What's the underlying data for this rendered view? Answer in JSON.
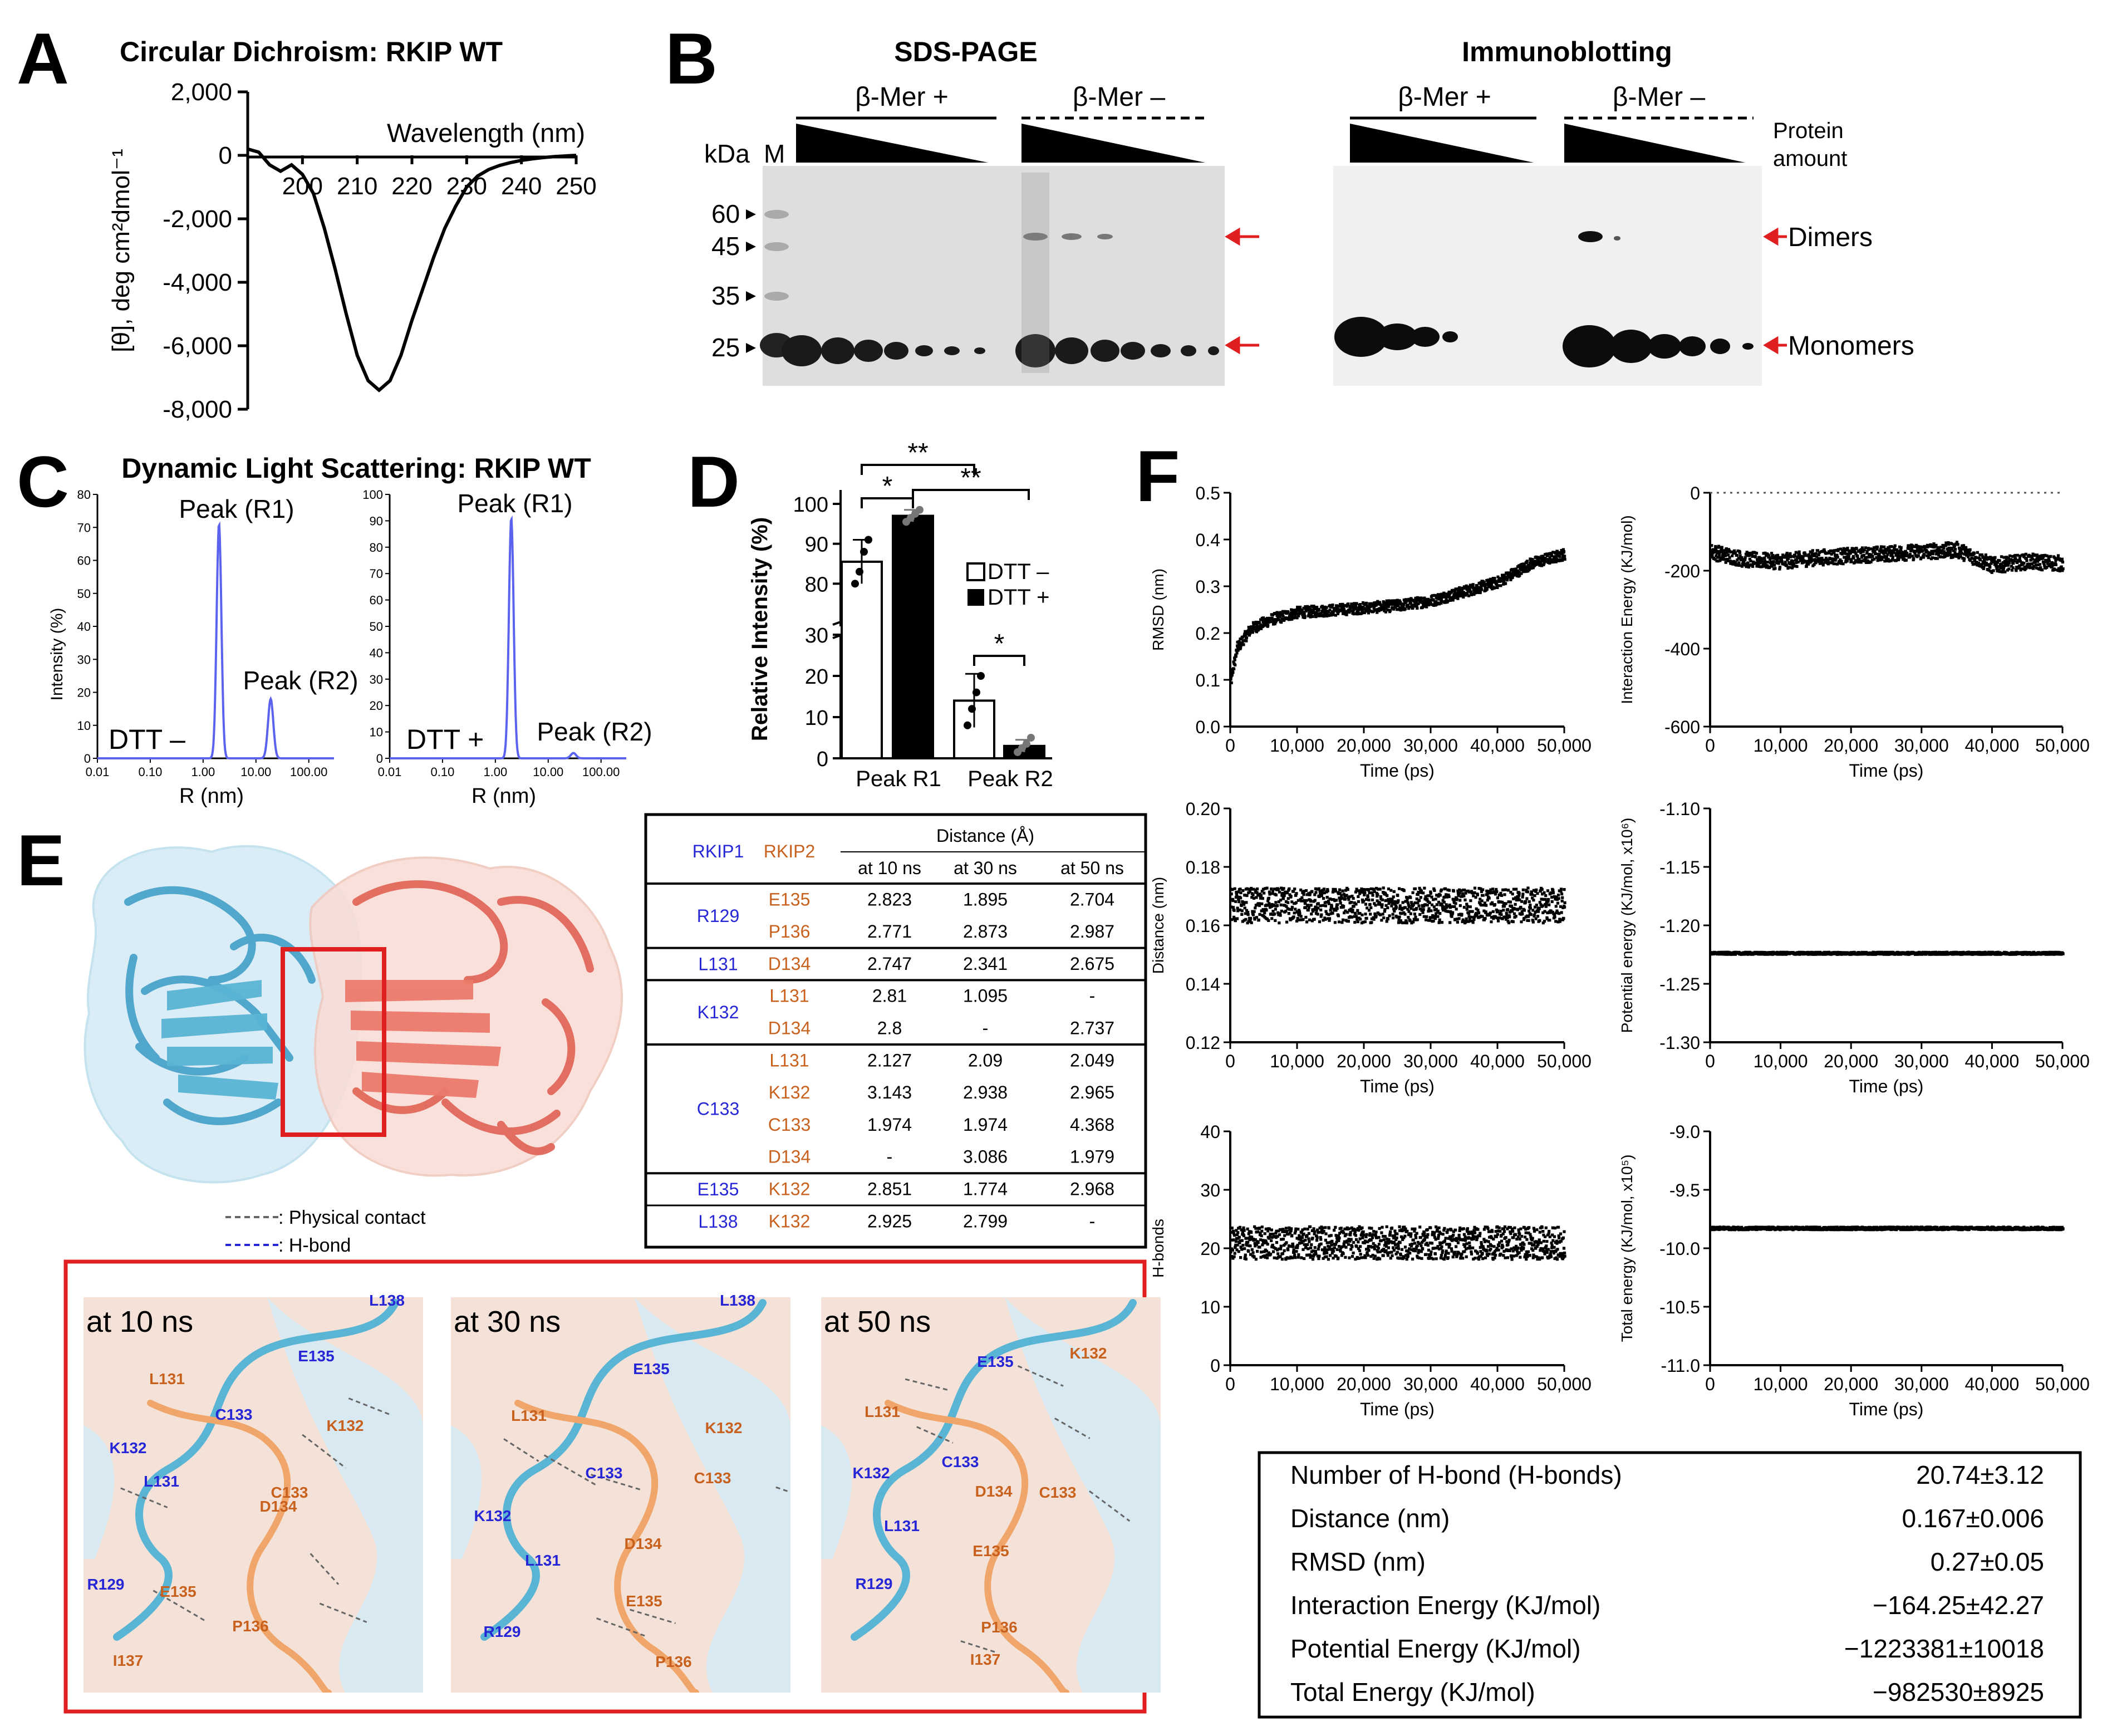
{
  "colors": {
    "cyan": "#5ab4d4",
    "salmon": "#ec7a6c",
    "blue_text": "#2626d6",
    "orange_text": "#c9611e",
    "red": "#e02020",
    "dls_line": "#5b62ee"
  },
  "panel_letters": [
    "A",
    "B",
    "C",
    "D",
    "E",
    "F"
  ],
  "A": {
    "title": "Circular Dichroism:  RKIP WT",
    "ylabel": "[θ], deg cm²dmol⁻¹",
    "xlabel": "Wavelength (nm)"
  },
  "B": {
    "title_left": "SDS-PAGE",
    "title_right": "Immunoblotting",
    "cond_plus": "β-Mer +",
    "cond_minus": "β-Mer –",
    "kda": "kDa",
    "marker": "M",
    "protein_amount_1": "Protein",
    "protein_amount_2": "amount",
    "dimers": "Dimers",
    "monomers": "Monomers",
    "mw": [
      "60",
      "45",
      "35",
      "25"
    ]
  },
  "C": {
    "title": "Dynamic Light Scattering:  RKIP WT",
    "ylabel": "Intensity (%)",
    "xlabel": "R (nm)",
    "peak_r1": "Peak (R1)",
    "peak_r2": "Peak (R2)",
    "dtt_minus": "DTT –",
    "dtt_plus": "DTT +"
  },
  "D": {
    "ylabel": "Relative Intensity  (%)",
    "legend_minus": "DTT –",
    "legend_plus": "DTT +",
    "sig_single": "*",
    "sig_double": "**"
  },
  "E": {
    "legend_contact": ": Physical contact",
    "legend_hbond": ": H-bond",
    "table": {
      "col_rkip1": "RKIP1",
      "col_rkip2": "RKIP2",
      "col_distance": "Distance (Å)",
      "col_t10": "at 10 ns",
      "col_t30": "at 30 ns",
      "col_t50": "at 50 ns",
      "groups": [
        {
          "rkip1": "R129",
          "rows": [
            [
              "E135",
              "2.823",
              "1.895",
              "2.704"
            ],
            [
              "P136",
              "2.771",
              "2.873",
              "2.987"
            ]
          ]
        },
        {
          "rkip1": "L131",
          "rows": [
            [
              "D134",
              "2.747",
              "2.341",
              "2.675"
            ]
          ]
        },
        {
          "rkip1": "K132",
          "rows": [
            [
              "L131",
              "2.81",
              "1.095",
              "-"
            ],
            [
              "D134",
              "2.8",
              "-",
              "2.737"
            ]
          ]
        },
        {
          "rkip1": "C133",
          "rows": [
            [
              "L131",
              "2.127",
              "2.09",
              "2.049"
            ],
            [
              "K132",
              "3.143",
              "2.938",
              "2.965"
            ],
            [
              "C133",
              "1.974",
              "1.974",
              "4.368"
            ],
            [
              "D134",
              "-",
              "3.086",
              "1.979"
            ]
          ]
        },
        {
          "rkip1": "E135",
          "rows": [
            [
              "K132",
              "2.851",
              "1.774",
              "2.968"
            ]
          ]
        },
        {
          "rkip1": "L138",
          "rows": [
            [
              "K132",
              "2.925",
              "2.799",
              "-"
            ]
          ]
        }
      ]
    },
    "snapshots": [
      {
        "title": "at 10 ns",
        "labels": [
          [
            "L138",
            "b"
          ],
          [
            "E135",
            "b"
          ],
          [
            "L131",
            "o"
          ],
          [
            "K132",
            "o"
          ],
          [
            "C133",
            "b"
          ],
          [
            "K132",
            "b"
          ],
          [
            "L131",
            "b"
          ],
          [
            "C133",
            "o"
          ],
          [
            "D134",
            "o"
          ],
          [
            "R129",
            "b"
          ],
          [
            "E135",
            "o"
          ],
          [
            "P136",
            "o"
          ],
          [
            "I137",
            "o"
          ]
        ]
      },
      {
        "title": "at 30 ns",
        "labels": [
          [
            "L138",
            "b"
          ],
          [
            "E135",
            "b"
          ],
          [
            "L131",
            "o"
          ],
          [
            "K132",
            "o"
          ],
          [
            "C133",
            "b"
          ],
          [
            "C133",
            "o"
          ],
          [
            "K132",
            "b"
          ],
          [
            "L131",
            "b"
          ],
          [
            "D134",
            "o"
          ],
          [
            "E135",
            "o"
          ],
          [
            "R129",
            "b"
          ],
          [
            "P136",
            "o"
          ]
        ]
      },
      {
        "title": "at 50 ns",
        "labels": [
          [
            "E135",
            "b"
          ],
          [
            "K132",
            "o"
          ],
          [
            "L131",
            "o"
          ],
          [
            "C133",
            "b"
          ],
          [
            "K132",
            "b"
          ],
          [
            "D134",
            "o"
          ],
          [
            "C133",
            "o"
          ],
          [
            "L131",
            "b"
          ],
          [
            "E135",
            "o"
          ],
          [
            "R129",
            "b"
          ],
          [
            "P136",
            "o"
          ],
          [
            "I137",
            "o"
          ]
        ]
      }
    ]
  },
  "F": {
    "xlabel": "Time (ps)",
    "plots": [
      {
        "ylabel": "RMSD (nm)"
      },
      {
        "ylabel": "Interaction Energy (KJ/mol)"
      },
      {
        "ylabel": "Distance (nm)"
      },
      {
        "ylabel": "Potential energy (KJ/mol, x10⁶)"
      },
      {
        "ylabel": "H-bonds"
      },
      {
        "ylabel": "Total energy (KJ/mol, x10⁵)"
      }
    ],
    "summary": [
      [
        "Number of H-bond (H-bonds)",
        "20.74±3.12"
      ],
      [
        "Distance (nm)",
        "0.167±0.006"
      ],
      [
        "RMSD (nm)",
        "0.27±0.05"
      ],
      [
        "Interaction Energy (KJ/mol)",
        "−164.25±42.27"
      ],
      [
        "Potential Energy (KJ/mol)",
        "−1223381±10018"
      ],
      [
        "Total Energy (KJ/mol)",
        "−982530±8925"
      ]
    ]
  },
  "chart_data": [
    {
      "id": "A",
      "type": "line",
      "title": "Circular Dichroism:  RKIP WT",
      "xlabel": "Wavelength (nm)",
      "ylabel": "[θ], deg cm²dmol⁻¹",
      "xlim": [
        190,
        250
      ],
      "ylim": [
        -8000,
        2000
      ],
      "xticks": [
        200,
        210,
        220,
        230,
        240,
        250
      ],
      "yticks": [
        2000,
        0,
        -2000,
        -4000,
        -6000,
        -8000
      ],
      "ytick_labels": [
        "2,000",
        "0",
        "-2,000",
        "-4,000",
        "-6,000",
        "-8,000"
      ],
      "x": [
        190,
        192,
        194,
        196,
        198,
        200,
        202,
        204,
        206,
        208,
        210,
        212,
        214,
        216,
        218,
        220,
        222,
        224,
        226,
        228,
        230,
        232,
        234,
        236,
        238,
        240,
        242,
        244,
        246,
        248,
        250
      ],
      "y": [
        200,
        100,
        -300,
        -500,
        -300,
        -600,
        -1200,
        -2300,
        -3600,
        -5000,
        -6300,
        -7100,
        -7400,
        -7100,
        -6300,
        -5200,
        -4200,
        -3200,
        -2300,
        -1600,
        -1000,
        -650,
        -450,
        -320,
        -230,
        -160,
        -110,
        -70,
        -40,
        -20,
        0
      ]
    },
    {
      "id": "C-left",
      "type": "line",
      "title": "DTT –",
      "xlabel": "R (nm)",
      "ylabel": "Intensity (%)",
      "xscale": "log",
      "xlim": [
        0.01,
        300
      ],
      "ylim": [
        0,
        80
      ],
      "xtick_labels": [
        "0.01",
        "0.10",
        "1.00",
        "10.00",
        "100.00"
      ],
      "ytick_labels": [
        "0",
        "10",
        "20",
        "30",
        "40",
        "50",
        "60",
        "70",
        "80"
      ],
      "peaks": [
        {
          "name": "Peak (R1)",
          "r": 2.0,
          "intensity": 71
        },
        {
          "name": "Peak (R2)",
          "r": 19,
          "intensity": 18
        }
      ]
    },
    {
      "id": "C-right",
      "type": "line",
      "title": "DTT +",
      "xlabel": "R (nm)",
      "ylabel": "Intensity (%)",
      "xscale": "log",
      "xlim": [
        0.01,
        300
      ],
      "ylim": [
        0,
        100
      ],
      "xtick_labels": [
        "0.01",
        "0.10",
        "1.00",
        "10.00",
        "100.00"
      ],
      "ytick_labels": [
        "0",
        "10",
        "20",
        "30",
        "40",
        "50",
        "60",
        "70",
        "80",
        "90",
        "100"
      ],
      "peaks": [
        {
          "name": "Peak (R1)",
          "r": 2.0,
          "intensity": 91
        },
        {
          "name": "Peak (R2)",
          "r": 30,
          "intensity": 2
        }
      ]
    },
    {
      "id": "D",
      "type": "bar",
      "categories": [
        "Peak R1",
        "Peak R2"
      ],
      "ylabel": "Relative Intensity  (%)",
      "ybreak": [
        30,
        70
      ],
      "yticks": [
        0,
        10,
        20,
        30,
        80,
        90,
        100
      ],
      "series": [
        {
          "name": "DTT –",
          "values": [
            85.5,
            14
          ],
          "err": [
            5.5,
            6.5
          ],
          "points": [
            [
              80,
              83,
              88,
              91
            ],
            [
              8,
              12,
              16,
              20
            ]
          ]
        },
        {
          "name": "DTT +",
          "values": [
            97,
            3
          ],
          "err": [
            1.5,
            1.5
          ],
          "points": [
            [
              95.5,
              96.5,
              97.5,
              98.5
            ],
            [
              1.5,
              2.5,
              3.5,
              5
            ]
          ]
        }
      ],
      "significance": [
        {
          "pair": "R1 DTT– vs R1 DTT+",
          "label": "*"
        },
        {
          "pair": "R1 DTT– vs R2",
          "label": "**"
        },
        {
          "pair": "R1 DTT+ vs R2",
          "label": "**"
        },
        {
          "pair": "R2 DTT– vs R2 DTT+",
          "label": "*"
        }
      ]
    },
    {
      "id": "F1",
      "type": "scatter",
      "ylabel": "RMSD (nm)",
      "xlabel": "Time (ps)",
      "xlim": [
        0,
        50000
      ],
      "ylim": [
        0,
        0.5
      ],
      "xtick_labels": [
        "0",
        "10,000",
        "20,000",
        "30,000",
        "40,000",
        "50,000"
      ],
      "ytick_labels": [
        "0.0",
        "0.1",
        "0.2",
        "0.3",
        "0.4",
        "0.5"
      ],
      "trend_x": [
        0,
        1000,
        3000,
        6000,
        10000,
        15000,
        20000,
        25000,
        30000,
        35000,
        40000,
        45000,
        50000
      ],
      "trend_y": [
        0.1,
        0.17,
        0.21,
        0.23,
        0.245,
        0.25,
        0.255,
        0.26,
        0.27,
        0.29,
        0.31,
        0.35,
        0.37
      ],
      "noise": 0.012
    },
    {
      "id": "F2",
      "type": "scatter",
      "ylabel": "Interaction Energy (KJ/mol)",
      "xlabel": "Time (ps)",
      "xlim": [
        0,
        50000
      ],
      "ylim": [
        -600,
        0
      ],
      "xtick_labels": [
        "0",
        "10,000",
        "20,000",
        "30,000",
        "40,000",
        "50,000"
      ],
      "ytick_labels": [
        "0",
        "-200",
        "-400",
        "-600"
      ],
      "trend_x": [
        0,
        5000,
        10000,
        15000,
        20000,
        25000,
        30000,
        35000,
        40000,
        45000,
        50000
      ],
      "trend_y": [
        -150,
        -170,
        -175,
        -165,
        -160,
        -155,
        -150,
        -145,
        -185,
        -175,
        -180
      ],
      "noise": 20
    },
    {
      "id": "F3",
      "type": "scatter",
      "ylabel": "Distance (nm)",
      "xlabel": "Time (ps)",
      "xlim": [
        0,
        50000
      ],
      "ylim": [
        0.12,
        0.2
      ],
      "xtick_labels": [
        "0",
        "10,000",
        "20,000",
        "30,000",
        "40,000",
        "50,000"
      ],
      "ytick_labels": [
        "0.12",
        "0.14",
        "0.16",
        "0.18",
        "0.20"
      ],
      "trend_x": [
        0,
        50000
      ],
      "trend_y": [
        0.167,
        0.167
      ],
      "noise": 0.006
    },
    {
      "id": "F4",
      "type": "scatter",
      "ylabel": "Potential energy (KJ/mol, x10⁶)",
      "xlabel": "Time (ps)",
      "xlim": [
        0,
        50000
      ],
      "ylim": [
        -1.3,
        -1.1
      ],
      "xtick_labels": [
        "0",
        "10,000",
        "20,000",
        "30,000",
        "40,000",
        "50,000"
      ],
      "ytick_labels": [
        "-1.10",
        "-1.15",
        "-1.20",
        "-1.25",
        "-1.30"
      ],
      "trend_x": [
        0,
        50000
      ],
      "trend_y": [
        -1.2234,
        -1.2234
      ],
      "noise": 0.001
    },
    {
      "id": "F5",
      "type": "scatter",
      "ylabel": "H-bonds",
      "xlabel": "Time (ps)",
      "xlim": [
        0,
        50000
      ],
      "ylim": [
        0,
        40
      ],
      "xtick_labels": [
        "0",
        "10,000",
        "20,000",
        "30,000",
        "40,000",
        "50,000"
      ],
      "ytick_labels": [
        "0",
        "10",
        "20",
        "30",
        "40"
      ],
      "trend_x": [
        0,
        50000
      ],
      "trend_y": [
        21,
        21
      ],
      "noise": 2.8
    },
    {
      "id": "F6",
      "type": "scatter",
      "ylabel": "Total energy (KJ/mol, x10⁵)",
      "xlabel": "Time (ps)",
      "xlim": [
        0,
        50000
      ],
      "ylim": [
        -11.0,
        -9.0
      ],
      "xtick_labels": [
        "0",
        "10,000",
        "20,000",
        "30,000",
        "40,000",
        "50,000"
      ],
      "ytick_labels": [
        "-9.0",
        "-9.5",
        "-10.0",
        "-10.5",
        "-11.0"
      ],
      "trend_x": [
        0,
        50000
      ],
      "trend_y": [
        -9.825,
        -9.825
      ],
      "noise": 0.012
    }
  ]
}
